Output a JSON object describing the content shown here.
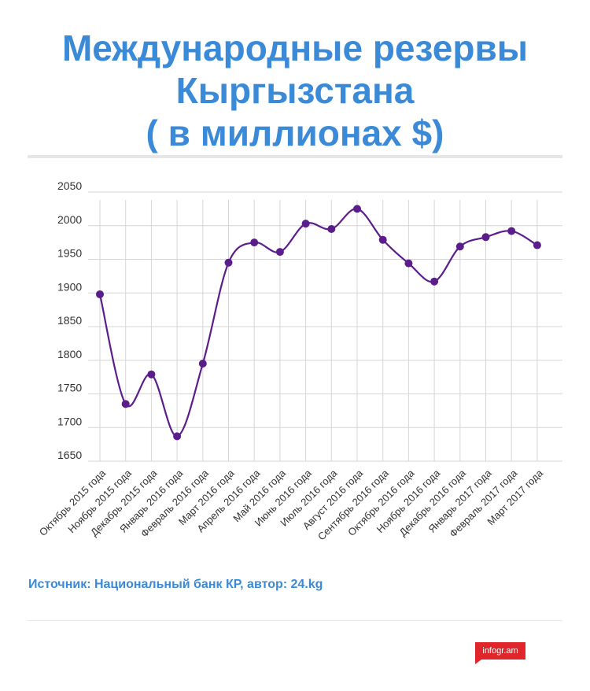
{
  "title": {
    "line1": "Международные резервы",
    "line2": "Кыргызстана",
    "line3": "( в миллионах $)"
  },
  "source": "Источник: Национальный банк КР, автор: 24.kg",
  "badge": "infogr.am",
  "colors": {
    "title": "#3a8ad8",
    "line": "#5b1d8c",
    "grid": "#d6d6d6",
    "badge": "#e0262b"
  },
  "chart_data": {
    "type": "line",
    "title": "Международные резервы Кыргызстана ( в миллионах $)",
    "xlabel": "",
    "ylabel": "",
    "ylim": [
      1650,
      2050
    ],
    "yticks": [
      1650,
      1700,
      1750,
      1800,
      1850,
      1900,
      1950,
      2000,
      2050
    ],
    "grid": true,
    "smooth": true,
    "categories": [
      "Октябрь 2015 года",
      "Ноябрь 2015 года",
      "Декабрь 2015 года",
      "Январь 2016 года",
      "Февраль 2016 года",
      "Март 2016 года",
      "Апрель 2016 года",
      "Май 2016 года",
      "Июнь 2016 года",
      "Июль 2016 года",
      "Август 2016 года",
      "Сентябрь 2016 года",
      "Октябрь 2016 года",
      "Ноябрь 2016 года",
      "Декабрь 2016 года",
      "Январь 2017 года",
      "Февраль 2017 года",
      "Март 2017 года"
    ],
    "series": [
      {
        "values": [
          1898,
          1735,
          1779,
          1687,
          1795,
          1945,
          1975,
          1961,
          2003,
          1995,
          2025,
          1979,
          1944,
          1917,
          1969,
          1983,
          1992,
          1971
        ]
      }
    ]
  }
}
